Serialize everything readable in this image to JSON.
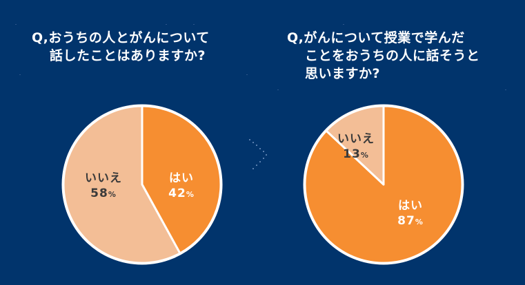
{
  "colors": {
    "background": "#01346c",
    "yes": "#f68e31",
    "no": "#f3be96",
    "border": "#ffffff",
    "label_dark": "#3a3a3a",
    "label_light": "#ffffff"
  },
  "questions": [
    {
      "lines": [
        "Q,おうちの人とがんについて",
        "話したことはありますか?"
      ]
    },
    {
      "lines": [
        "Q,がんについて授業で学んだ",
        "ことをおうちの人に話そうと",
        "思いますか?"
      ]
    }
  ],
  "separator_icon": "chevron-right-dotted",
  "chart_data": [
    {
      "type": "pie",
      "title": "Q,おうちの人とがんについて話したことはありますか?",
      "categories": [
        "はい",
        "いいえ"
      ],
      "values": [
        42,
        58
      ],
      "unit": "%",
      "start_angle": "12 o'clock, clockwise",
      "labels": [
        {
          "name": "はい",
          "value": "42",
          "unit": "%"
        },
        {
          "name": "いいえ",
          "value": "58",
          "unit": "%"
        }
      ]
    },
    {
      "type": "pie",
      "title": "Q,がんについて授業で学んだことをおうちの人に話そうと思いますか?",
      "categories": [
        "はい",
        "いいえ"
      ],
      "values": [
        87,
        13
      ],
      "unit": "%",
      "start_angle": "12 o'clock, clockwise",
      "labels": [
        {
          "name": "はい",
          "value": "87",
          "unit": "%"
        },
        {
          "name": "いいえ",
          "value": "13",
          "unit": "%"
        }
      ]
    }
  ]
}
